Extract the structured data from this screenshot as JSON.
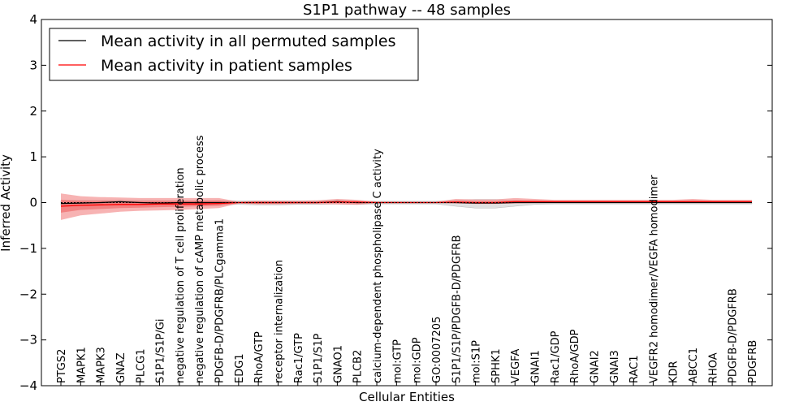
{
  "chart_data": {
    "type": "line",
    "title": "S1P1 pathway -- 48 samples",
    "xlabel": "Cellular Entities",
    "ylabel": "Inferred Activity",
    "ylim": [
      -4,
      4
    ],
    "yticks": [
      "4",
      "3",
      "2",
      "1",
      "0",
      "−1",
      "−2",
      "−3",
      "−4"
    ],
    "legend": {
      "placement": "top-left",
      "entries": [
        {
          "label": "Mean activity in all permuted samples",
          "color": "#000000"
        },
        {
          "label": "Mean activity in patient samples",
          "color": "#ff0000"
        }
      ]
    },
    "categories": [
      "PTGS2",
      "MAPK1",
      "MAPK3",
      "GNAZ",
      "PLCG1",
      "S1P1/S1P/Gi",
      "negative regulation of T cell proliferation",
      "negative regulation of cAMP metabolic process",
      "PDGFB-D/PDGFRB/PLCgamma1",
      "EDG1",
      "RhoA/GTP",
      "receptor internalization",
      "Rac1/GTP",
      "S1P1/S1P",
      "GNAO1",
      "PLCB2",
      "calcium-dependent phospholipase C activity",
      "mol:GTP",
      "mol:GDP",
      "GO:0007205",
      "S1P1/S1P/PDGFB-D/PDGFRB",
      "mol:S1P",
      "SPHK1",
      "VEGFA",
      "GNAI1",
      "Rac1/GDP",
      "RhoA/GDP",
      "GNAI2",
      "GNAI3",
      "RAC1",
      "VEGFR2 homodimer/VEGFA homodimer",
      "KDR",
      "ABCC1",
      "RHOA",
      "PDGFB-D/PDGFRB",
      "PDGFRB"
    ],
    "series": [
      {
        "name": "Mean activity in all permuted samples",
        "color": "#000000",
        "values": [
          -0.02,
          -0.01,
          0.0,
          0.02,
          0.0,
          -0.01,
          0.0,
          0.0,
          0.0,
          0.0,
          0.0,
          0.0,
          0.0,
          0.0,
          0.02,
          0.0,
          0.0,
          0.0,
          0.0,
          0.0,
          0.0,
          -0.01,
          -0.01,
          0.0,
          0.0,
          0.0,
          0.0,
          0.0,
          0.0,
          0.0,
          0.0,
          0.0,
          0.0,
          0.0,
          0.0,
          0.0
        ],
        "lower": [
          -0.06,
          -0.06,
          -0.05,
          -0.04,
          -0.04,
          -0.05,
          -0.05,
          -0.05,
          -0.05,
          -0.04,
          -0.05,
          -0.05,
          -0.04,
          -0.04,
          -0.03,
          -0.04,
          -0.03,
          -0.03,
          -0.03,
          -0.03,
          -0.08,
          -0.12,
          -0.12,
          -0.08,
          -0.04,
          -0.03,
          -0.03,
          -0.03,
          -0.03,
          -0.03,
          -0.03,
          -0.03,
          -0.03,
          -0.03,
          -0.03,
          -0.03
        ],
        "upper": [
          0.04,
          0.05,
          0.05,
          0.06,
          0.05,
          0.04,
          0.04,
          0.04,
          0.04,
          0.04,
          0.04,
          0.04,
          0.04,
          0.04,
          0.06,
          0.04,
          0.03,
          0.03,
          0.03,
          0.03,
          0.05,
          0.07,
          0.07,
          0.05,
          0.03,
          0.03,
          0.03,
          0.03,
          0.03,
          0.03,
          0.03,
          0.03,
          0.03,
          0.03,
          0.03,
          0.03
        ]
      },
      {
        "name": "Mean activity in patient samples",
        "color": "#ff0000",
        "values": [
          -0.08,
          -0.06,
          -0.05,
          -0.04,
          -0.04,
          -0.03,
          -0.03,
          -0.03,
          -0.02,
          0.0,
          0.0,
          0.0,
          0.0,
          0.0,
          0.01,
          0.01,
          0.0,
          0.0,
          0.0,
          0.0,
          0.01,
          0.0,
          0.0,
          0.02,
          0.02,
          0.02,
          0.02,
          0.02,
          0.02,
          0.02,
          0.02,
          0.02,
          0.02,
          0.02,
          0.02,
          0.02
        ],
        "lower": [
          -0.38,
          -0.28,
          -0.24,
          -0.2,
          -0.18,
          -0.17,
          -0.16,
          -0.14,
          -0.12,
          -0.02,
          -0.04,
          -0.04,
          -0.03,
          -0.03,
          -0.04,
          -0.05,
          -0.01,
          -0.01,
          -0.01,
          -0.01,
          -0.02,
          -0.03,
          -0.03,
          -0.02,
          -0.01,
          -0.01,
          -0.01,
          -0.01,
          -0.01,
          -0.01,
          -0.01,
          -0.01,
          -0.01,
          -0.01,
          -0.01,
          -0.01
        ],
        "upper": [
          0.2,
          0.14,
          0.12,
          0.11,
          0.1,
          0.1,
          0.1,
          0.1,
          0.1,
          0.02,
          0.04,
          0.04,
          0.04,
          0.05,
          0.08,
          0.06,
          0.02,
          0.02,
          0.02,
          0.02,
          0.08,
          0.07,
          0.07,
          0.1,
          0.08,
          0.06,
          0.06,
          0.06,
          0.06,
          0.06,
          0.06,
          0.06,
          0.08,
          0.06,
          0.06,
          0.06
        ],
        "inner_lower": [
          -0.22,
          -0.16,
          -0.14,
          -0.12,
          -0.11,
          -0.1,
          -0.09,
          -0.08,
          -0.07,
          -0.01,
          -0.02,
          -0.02,
          -0.01,
          -0.01,
          -0.01,
          -0.02,
          0.0,
          0.0,
          0.0,
          0.0,
          -0.01,
          -0.01,
          -0.01,
          0.0,
          0.0,
          0.0,
          0.0,
          0.0,
          0.0,
          0.0,
          0.0,
          0.0,
          0.0,
          0.0,
          0.0,
          0.0
        ],
        "inner_upper": [
          0.06,
          0.04,
          0.04,
          0.03,
          0.03,
          0.04,
          0.04,
          0.04,
          0.05,
          0.01,
          0.02,
          0.02,
          0.02,
          0.02,
          0.04,
          0.03,
          0.01,
          0.01,
          0.01,
          0.01,
          0.04,
          0.03,
          0.03,
          0.05,
          0.05,
          0.04,
          0.04,
          0.04,
          0.04,
          0.04,
          0.04,
          0.04,
          0.05,
          0.04,
          0.04,
          0.04
        ]
      }
    ]
  }
}
